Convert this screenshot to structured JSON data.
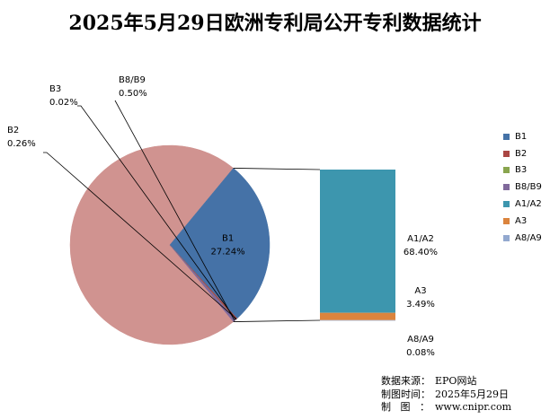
{
  "chart_data": {
    "type": "pie",
    "title": "2025年5月29日欧洲专利局公开专利数据统计",
    "categories": [
      "B1",
      "B2",
      "B3",
      "B8/B9",
      "A1/A2",
      "A3",
      "A8/A9"
    ],
    "values": [
      27.24,
      0.26,
      0.02,
      0.5,
      68.4,
      3.49,
      0.08
    ],
    "value_labels": [
      "27.24%",
      "0.26%",
      "0.02%",
      "0.50%",
      "68.40%",
      "3.49%",
      "0.08%"
    ],
    "colors": [
      "#4572A7",
      "#AA4643",
      "#89A54E",
      "#80699B",
      "#3D96AE",
      "#DB843D",
      "#93A9CF"
    ],
    "pie_slice_color": "#D09390",
    "bar_of_pie": {
      "pie_categories": [
        "B1",
        "B2",
        "B3",
        "B8/B9"
      ],
      "other_label": "",
      "other_value": 71.97,
      "bar_categories": [
        "A1/A2",
        "A3",
        "A8/A9"
      ]
    },
    "legend_position": "right"
  },
  "source": {
    "lines": [
      {
        "key": "数据来源：",
        "value": "EPO网站"
      },
      {
        "key": "制图时间：",
        "value": "2025年5月29日"
      },
      {
        "key": "制图：",
        "value": "www.cnipr.com"
      }
    ]
  }
}
